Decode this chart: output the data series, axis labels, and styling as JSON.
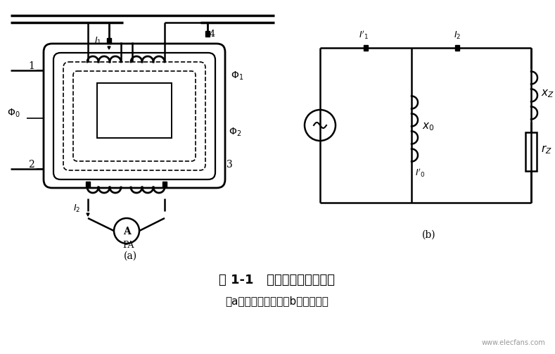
{
  "title": "图 1-1   电流互感器的原理图",
  "subtitle": "（a）电气原理图；（b）等效电路",
  "label_a": "(a)",
  "label_b": "(b)",
  "bg_color": "#ffffff",
  "line_color": "#000000",
  "fig_width": 7.89,
  "fig_height": 5.03
}
